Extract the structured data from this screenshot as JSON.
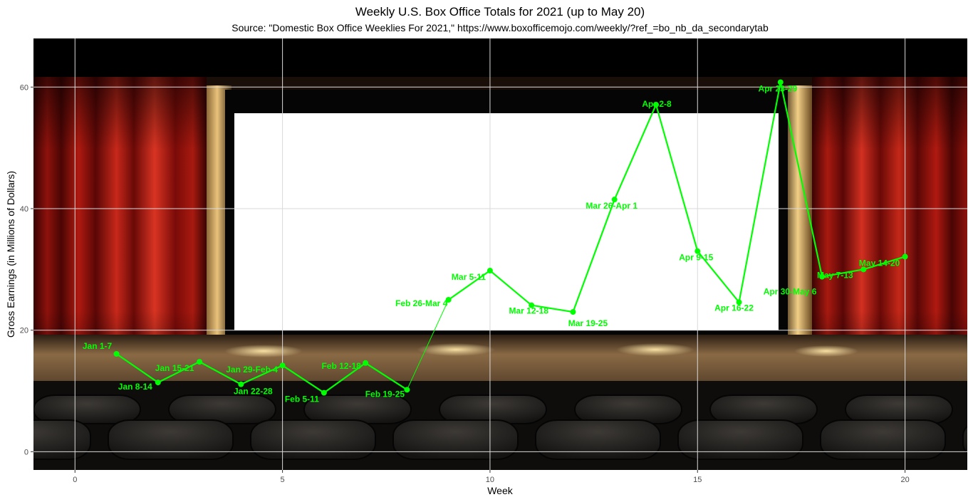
{
  "chart_data": {
    "type": "line",
    "title": "Weekly U.S. Box Office Totals for 2021 (up to May 20)",
    "subtitle": "Source: \"Domestic Box Office Weeklies For 2021,\" https://www.boxofficemojo.com/weekly/?ref_=bo_nb_da_secondarytab",
    "xlabel": "Week",
    "ylabel": "Gross Earnings (in Millions of Dollars)",
    "xlim": [
      -1,
      21.5
    ],
    "ylim": [
      -3,
      68
    ],
    "x_ticks": [
      0,
      5,
      10,
      15,
      20
    ],
    "y_ticks": [
      0,
      20,
      40,
      60
    ],
    "grid": true,
    "legend": "none",
    "line_color": "#00ff00",
    "background": "movie theater photo",
    "points": [
      {
        "week": 1,
        "value": 16.1,
        "label": "Jan 1-7"
      },
      {
        "week": 2,
        "value": 11.4,
        "label": "Jan 8-14"
      },
      {
        "week": 3,
        "value": 14.8,
        "label": "Jan 15-21"
      },
      {
        "week": 4,
        "value": 11.1,
        "label": "Jan 22-28"
      },
      {
        "week": 5,
        "value": 14.2,
        "label": "Jan 29-Feb 4"
      },
      {
        "week": 6,
        "value": 9.7,
        "label": "Feb 5-11"
      },
      {
        "week": 7,
        "value": 14.6,
        "label": "Feb 12-18"
      },
      {
        "week": 8,
        "value": 10.2,
        "label": "Feb 19-25"
      },
      {
        "week": 9,
        "value": 25.0,
        "label": "Feb 26-Mar 4"
      },
      {
        "week": 10,
        "value": 29.8,
        "label": "Mar 5-11"
      },
      {
        "week": 11,
        "value": 24.1,
        "label": "Mar 12-18"
      },
      {
        "week": 12,
        "value": 23.0,
        "label": "Mar 19-25"
      },
      {
        "week": 13,
        "value": 41.5,
        "label": "Mar 26-Apr 1"
      },
      {
        "week": 14,
        "value": 57.1,
        "label": "Apr 2-8"
      },
      {
        "week": 15,
        "value": 33.0,
        "label": "Apr 9-15"
      },
      {
        "week": 16,
        "value": 24.6,
        "label": "Apr 16-22"
      },
      {
        "week": 17,
        "value": 60.8,
        "label": "Apr 23-29"
      },
      {
        "week": 18,
        "value": 28.8,
        "label": "Apr 30-May 6"
      },
      {
        "week": 19,
        "value": 30.0,
        "label": "May 7-13"
      },
      {
        "week": 20,
        "value": 32.1,
        "label": "May 14-20"
      }
    ]
  }
}
